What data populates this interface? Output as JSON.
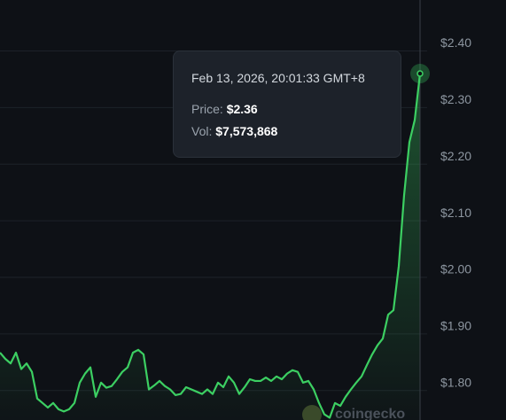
{
  "chart_data": {
    "type": "line",
    "color": "#3ccf62",
    "values": [
      1.867,
      1.856,
      1.848,
      1.867,
      1.838,
      1.848,
      1.833,
      1.786,
      1.778,
      1.77,
      1.778,
      1.767,
      1.763,
      1.767,
      1.778,
      1.814,
      1.83,
      1.841,
      1.789,
      1.814,
      1.805,
      1.808,
      1.82,
      1.833,
      1.841,
      1.867,
      1.872,
      1.864,
      1.802,
      1.809,
      1.817,
      1.808,
      1.802,
      1.792,
      1.794,
      1.806,
      1.802,
      1.798,
      1.794,
      1.802,
      1.794,
      1.814,
      1.806,
      1.825,
      1.814,
      1.794,
      1.806,
      1.82,
      1.817,
      1.817,
      1.823,
      1.817,
      1.825,
      1.82,
      1.83,
      1.836,
      1.833,
      1.814,
      1.817,
      1.802,
      1.778,
      1.758,
      1.752,
      1.778,
      1.773,
      1.789,
      1.802,
      1.814,
      1.825,
      1.845,
      1.864,
      1.88,
      1.892,
      1.934,
      1.942,
      2.02,
      2.145,
      2.239,
      2.278,
      2.36
    ],
    "ylim": [
      1.748,
      2.49
    ],
    "yticks": [
      {
        "value": 1.8,
        "label": "$1.80"
      },
      {
        "value": 1.9,
        "label": "$1.90"
      },
      {
        "value": 2.0,
        "label": "$2.00"
      },
      {
        "value": 2.1,
        "label": "$2.10"
      },
      {
        "value": 2.2,
        "label": "$2.20"
      },
      {
        "value": 2.3,
        "label": "$2.30"
      },
      {
        "value": 2.4,
        "label": "$2.40"
      }
    ],
    "grid": true,
    "tooltip": {
      "date": "Feb 13, 2026, 20:01:33 GMT+8",
      "price_label": "Price:",
      "price": "$2.36",
      "vol_label": "Vol:",
      "vol": "$7,573,868"
    },
    "watermark": "coingecko"
  }
}
